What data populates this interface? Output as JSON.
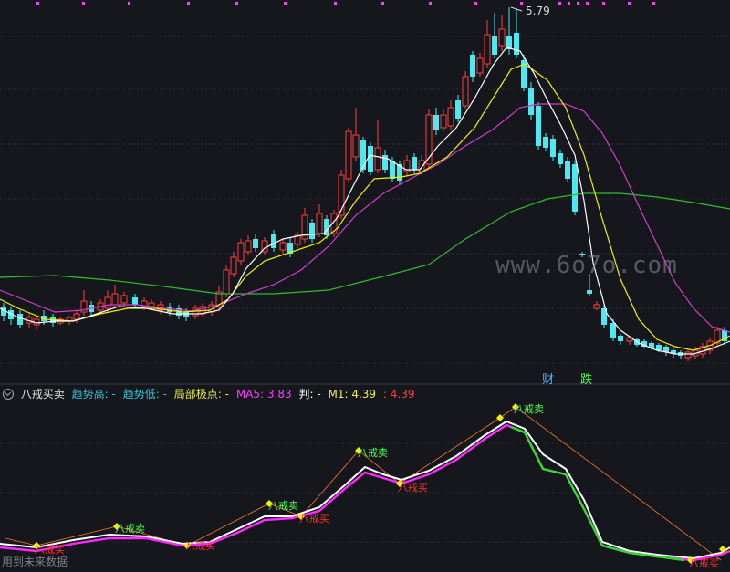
{
  "price_panel": {
    "high_label": "5.79",
    "annotations": [
      {
        "text": "财",
        "color": "#4fb3ff"
      },
      {
        "text": "跌",
        "color": "#4cff4c"
      }
    ]
  },
  "indicator": {
    "name": "八戒买卖",
    "items": [
      {
        "label": "趋势高:",
        "value": "-",
        "color": "#33c3d6"
      },
      {
        "label": "趋势低:",
        "value": "-",
        "color": "#33c3d6"
      },
      {
        "label": "局部极点:",
        "value": "-",
        "color": "#e8e84a"
      },
      {
        "label": "MA5:",
        "value": "3.83",
        "color": "#ff3cff"
      },
      {
        "label": "判:",
        "value": "-",
        "color": "#ffffff"
      },
      {
        "label": "M1:",
        "value": "4.39",
        "color": "#f0f060"
      },
      {
        "label": ":",
        "value": "4.39",
        "color": "#ff4040"
      }
    ],
    "sell_label": "八戒卖",
    "buy_label": "八戒买",
    "bottom_note": "用到未来数据"
  },
  "watermark": "www.6o7o.com",
  "colors": {
    "up": "#ff3c3c",
    "down": "#4de8f0",
    "ma_white": "#ffffff",
    "ma_yellow": "#f0f000",
    "ma_magenta": "#d23cd2",
    "ma_green": "#2ebd2e"
  }
}
